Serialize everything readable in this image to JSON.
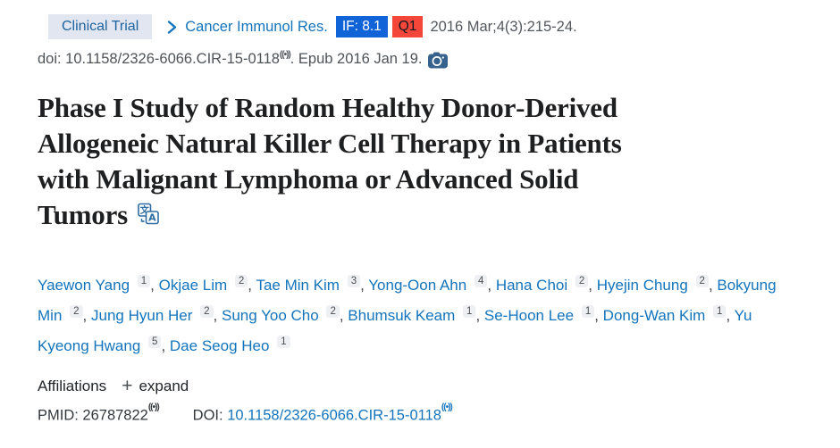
{
  "header": {
    "pub_type_label": "Clinical Trial",
    "journal": "Cancer Immunol Res.",
    "impact_factor_badge": "IF: 8.1",
    "quartile_badge": "Q1",
    "citation": "2016 Mar;4(3):215-24.",
    "doi_text": "doi: 10.1158/2326-6066.CIR-15-0118",
    "epub_text": ". Epub 2016 Jan 19."
  },
  "title": {
    "full": "Phase I Study of Random Healthy Donor-Derived Allogeneic Natural Killer Cell Therapy in Patients with Malignant Lymphoma or Advanced Solid Tumors",
    "lines": [
      "Phase I Study of Random Healthy Donor‑Derived",
      "Allogeneic Natural Killer Cell Therapy in Patients",
      "with Malignant Lymphoma or Advanced Solid",
      "Tumors"
    ]
  },
  "authors": [
    {
      "name": "Yaewon Yang",
      "affil": "1"
    },
    {
      "name": "Okjae Lim",
      "affil": "2"
    },
    {
      "name": "Tae Min Kim",
      "affil": "3"
    },
    {
      "name": "Yong-Oon Ahn",
      "affil": "4"
    },
    {
      "name": "Hana Choi",
      "affil": "2"
    },
    {
      "name": "Hyejin Chung",
      "affil": "2"
    },
    {
      "name": "Bokyung Min",
      "affil": "2"
    },
    {
      "name": "Jung Hyun Her",
      "affil": "2"
    },
    {
      "name": "Sung Yoo Cho",
      "affil": "2"
    },
    {
      "name": "Bhumsuk Keam",
      "affil": "1"
    },
    {
      "name": "Se-Hoon Lee",
      "affil": "1"
    },
    {
      "name": "Dong-Wan Kim",
      "affil": "1"
    },
    {
      "name": "Yu Kyeong Hwang",
      "affil": "5"
    },
    {
      "name": "Dae Seog Heo",
      "affil": "1"
    }
  ],
  "affiliations": {
    "label": "Affiliations",
    "expand_label": "expand",
    "plus_glyph": "+"
  },
  "identifiers": {
    "pmid_label": "PMID: ",
    "pmid": "26787822",
    "doi_label": "DOI: ",
    "doi": "10.1158/2326-6066.CIR-15-0118"
  },
  "icons": {
    "signal_glyph": "((•))",
    "chevron": "›",
    "camera": "camera",
    "translate": "translate"
  },
  "colors": {
    "link_blue": "#1374bc",
    "chip_bg": "#e2e6f1",
    "chip_text": "#1e639e",
    "if_badge_bg": "#1164d8",
    "q1_badge_bg": "#f4473a",
    "gray_text": "#4e5358",
    "title_text": "#1e1f21",
    "camera_icon": "#35618c"
  }
}
